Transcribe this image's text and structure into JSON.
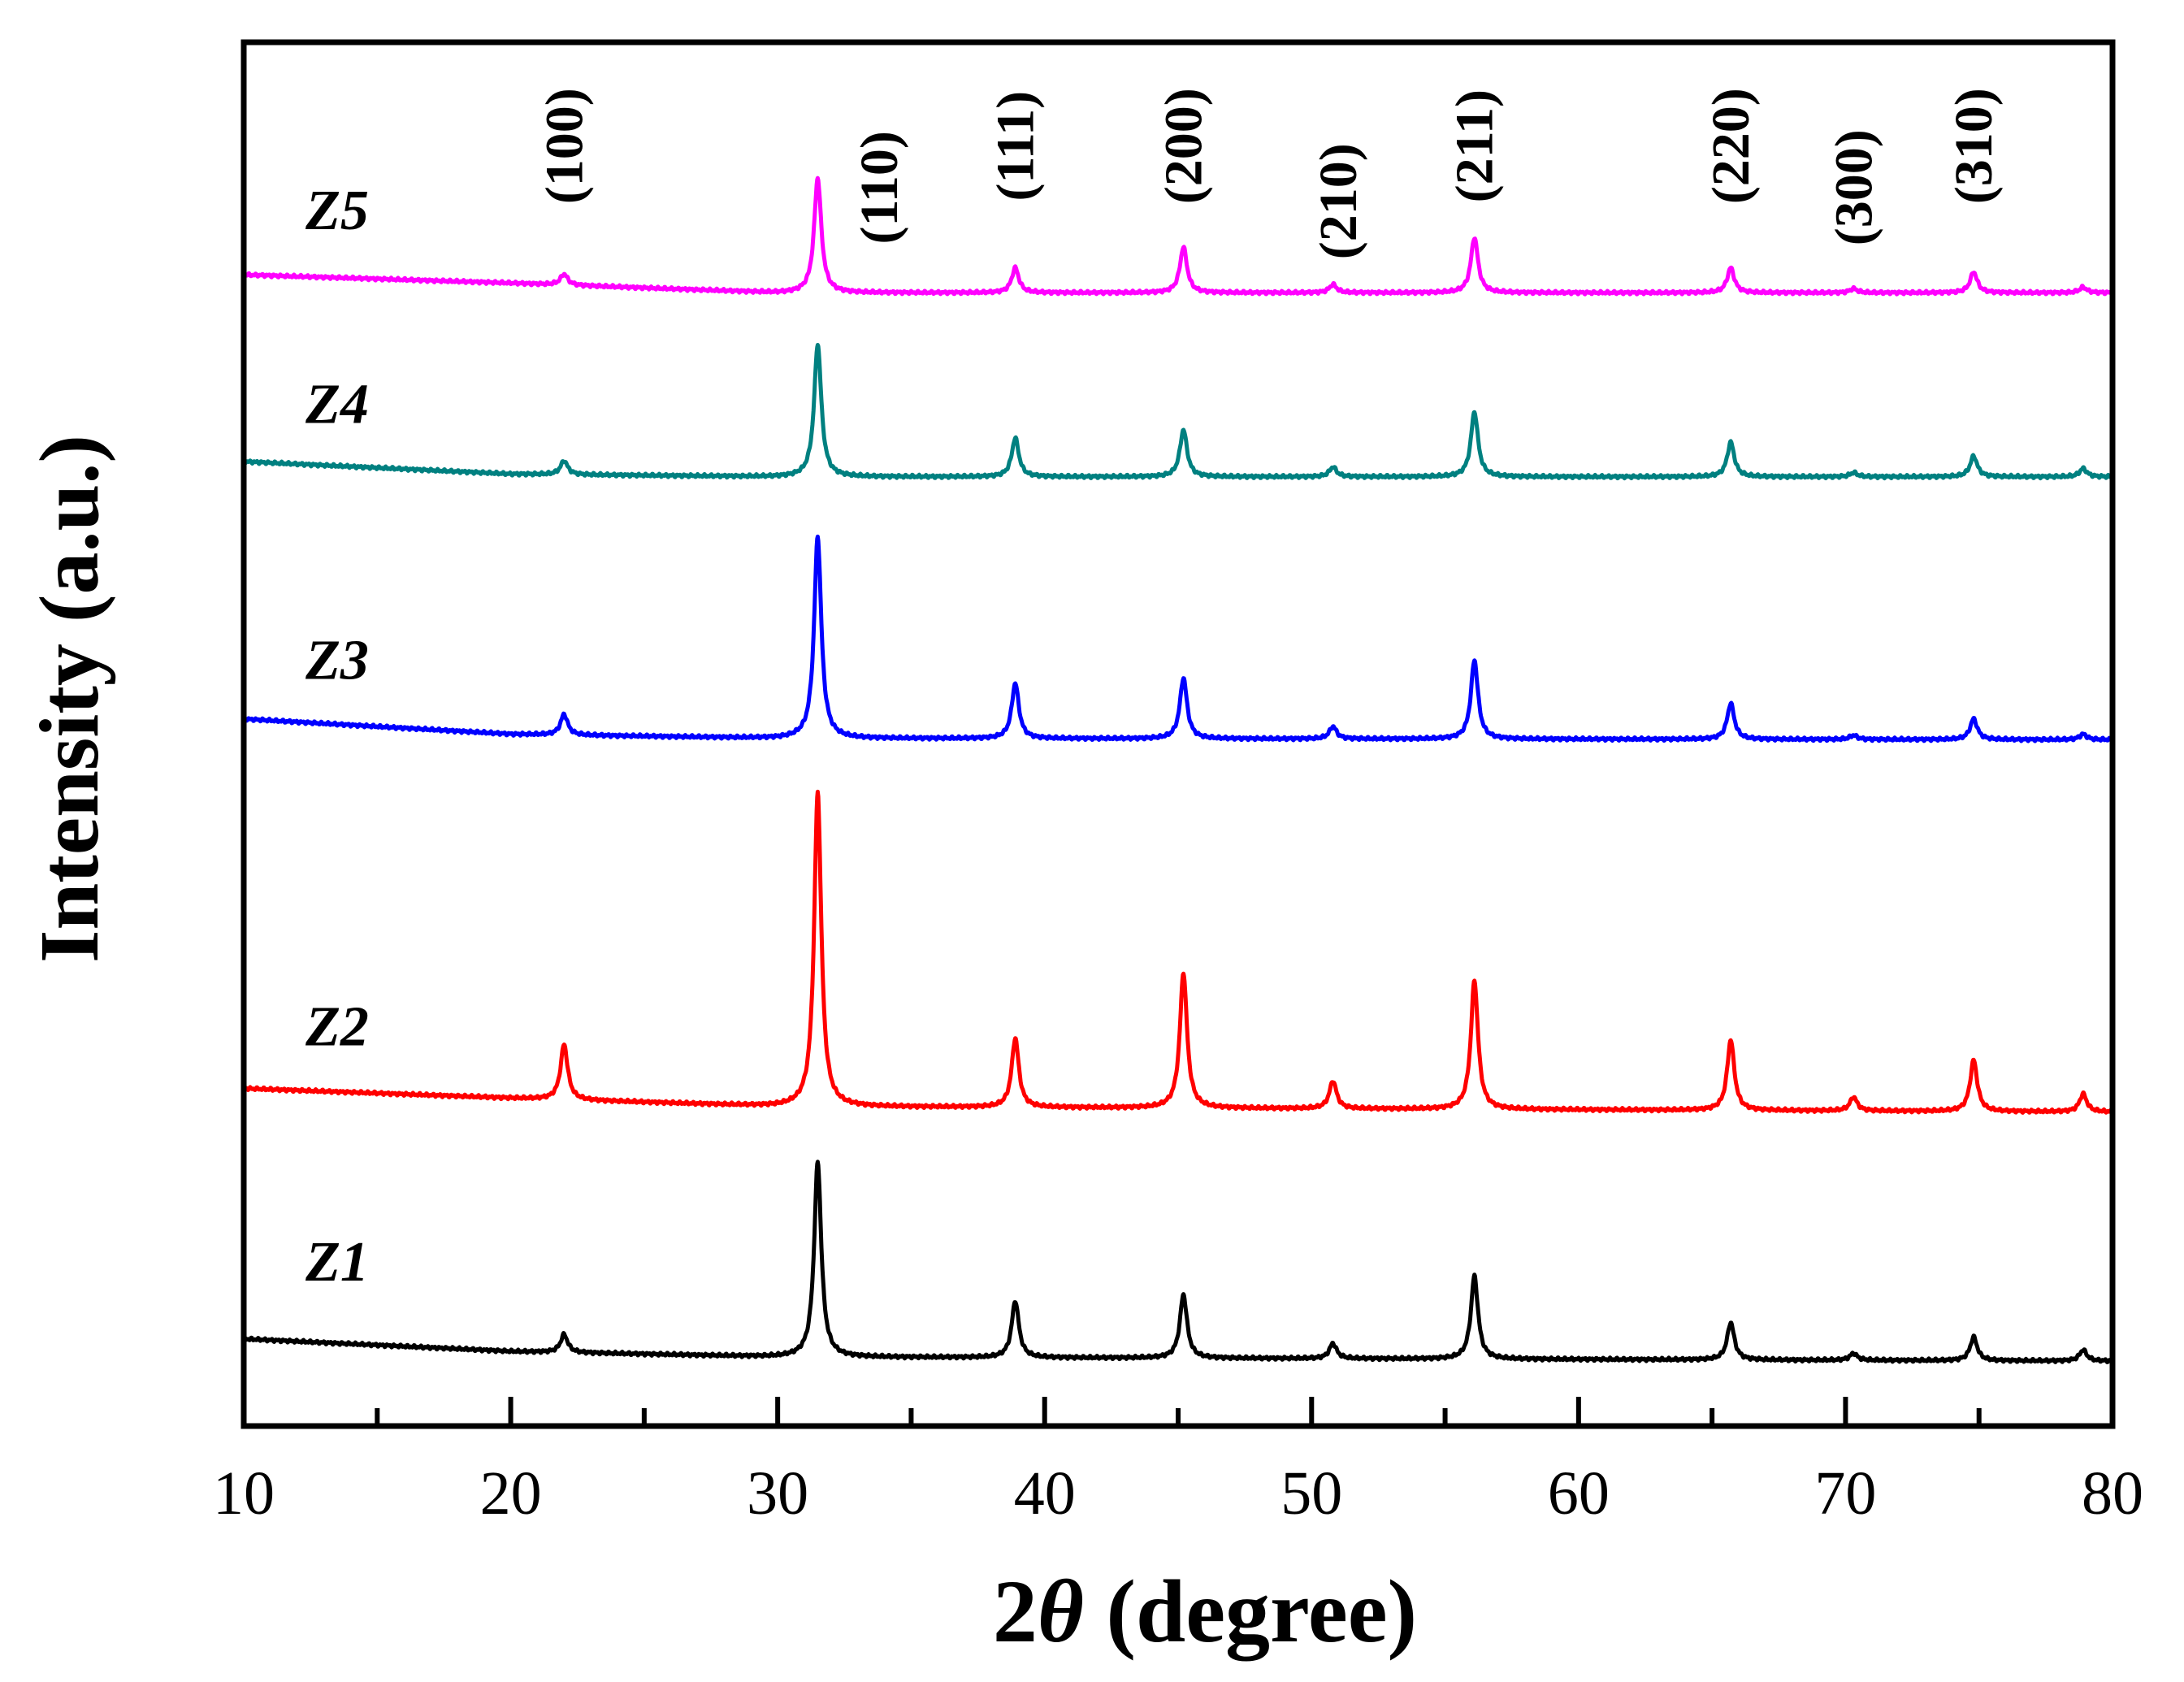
{
  "chart_data": {
    "type": "line",
    "xlabel_prefix": "2",
    "xlabel_symbol": "θ",
    "xlabel_suffix": " (degree)",
    "ylabel": "Intensity (a.u.)",
    "xlim": [
      10,
      80
    ],
    "xticks": [
      "10",
      "20",
      "30",
      "40",
      "50",
      "60",
      "70",
      "80"
    ],
    "y_units": "offset intensity, 0–100 scale",
    "ylim": [
      0,
      100
    ],
    "peak_width": 0.16,
    "series": [
      {
        "name": "Z1",
        "color": "#000000",
        "label_x": 13.5,
        "label_y": 10.5,
        "baseline_points": [
          [
            10,
            6.3
          ],
          [
            20,
            5.4
          ],
          [
            30,
            5.0
          ],
          [
            80,
            4.7
          ]
        ],
        "peaks": [
          [
            22.0,
            1.3
          ],
          [
            31.5,
            14.1
          ],
          [
            38.9,
            4.1
          ],
          [
            45.2,
            4.6
          ],
          [
            50.8,
            1.1
          ],
          [
            56.1,
            6.0
          ],
          [
            65.7,
            2.7
          ],
          [
            70.3,
            0.5
          ],
          [
            74.8,
            1.7
          ],
          [
            78.9,
            0.8
          ]
        ]
      },
      {
        "name": "Z2",
        "color": "#ff0000",
        "label_x": 13.5,
        "label_y": 27.5,
        "baseline_points": [
          [
            10,
            24.4
          ],
          [
            20,
            23.7
          ],
          [
            30,
            23.1
          ],
          [
            80,
            22.7
          ]
        ],
        "peaks": [
          [
            22.0,
            4.0
          ],
          [
            31.5,
            22.7
          ],
          [
            38.9,
            5.0
          ],
          [
            45.2,
            9.8
          ],
          [
            50.8,
            2.0
          ],
          [
            56.1,
            9.3
          ],
          [
            65.7,
            5.1
          ],
          [
            70.3,
            1.0
          ],
          [
            74.8,
            3.7
          ],
          [
            78.9,
            1.3
          ]
        ]
      },
      {
        "name": "Z3",
        "color": "#0000ff",
        "label_x": 13.5,
        "label_y": 54.0,
        "baseline_points": [
          [
            10,
            51.1
          ],
          [
            20,
            50.0
          ],
          [
            30,
            49.7
          ],
          [
            80,
            49.6
          ]
        ],
        "peaks": [
          [
            22.0,
            1.5
          ],
          [
            31.5,
            14.6
          ],
          [
            38.9,
            4.0
          ],
          [
            45.2,
            4.4
          ],
          [
            50.8,
            0.9
          ],
          [
            56.1,
            5.7
          ],
          [
            65.7,
            2.6
          ],
          [
            70.3,
            0.3
          ],
          [
            74.8,
            1.5
          ],
          [
            78.9,
            0.4
          ]
        ]
      },
      {
        "name": "Z4",
        "color": "#008080",
        "label_x": 13.5,
        "label_y": 72.5,
        "baseline_points": [
          [
            10,
            69.7
          ],
          [
            20,
            68.8
          ],
          [
            30,
            68.6
          ],
          [
            80,
            68.6
          ]
        ],
        "peaks": [
          [
            22.0,
            1.0
          ],
          [
            31.5,
            9.6
          ],
          [
            38.9,
            2.8
          ],
          [
            45.2,
            3.4
          ],
          [
            50.8,
            0.7
          ],
          [
            56.1,
            4.7
          ],
          [
            65.7,
            2.5
          ],
          [
            70.3,
            0.3
          ],
          [
            74.8,
            1.5
          ],
          [
            78.9,
            0.6
          ]
        ]
      },
      {
        "name": "Z5",
        "color": "#ff00ff",
        "label_x": 13.5,
        "label_y": 86.5,
        "baseline_points": [
          [
            10,
            83.2
          ],
          [
            20,
            82.6
          ],
          [
            30,
            81.9
          ],
          [
            80,
            81.9
          ]
        ],
        "peaks": [
          [
            22.0,
            0.8
          ],
          [
            31.5,
            8.3
          ],
          [
            38.9,
            1.8
          ],
          [
            45.2,
            3.3
          ],
          [
            50.8,
            0.6
          ],
          [
            56.1,
            4.0
          ],
          [
            65.7,
            1.8
          ],
          [
            70.3,
            0.3
          ],
          [
            74.8,
            1.5
          ],
          [
            78.9,
            0.4
          ]
        ]
      }
    ],
    "peak_labels": [
      {
        "text": "(100)",
        "x": 22.0,
        "y": 92.5
      },
      {
        "text": "(110)",
        "x": 33.8,
        "y": 89.5
      },
      {
        "text": "(111)",
        "x": 38.9,
        "y": 92.5
      },
      {
        "text": "(200)",
        "x": 45.2,
        "y": 92.5
      },
      {
        "text": "(210)",
        "x": 51.0,
        "y": 88.5
      },
      {
        "text": "(211)",
        "x": 56.1,
        "y": 92.5
      },
      {
        "text": "(220)",
        "x": 65.7,
        "y": 92.5
      },
      {
        "text": "(300)",
        "x": 70.3,
        "y": 89.5
      },
      {
        "text": "(310)",
        "x": 74.8,
        "y": 92.5
      }
    ]
  }
}
